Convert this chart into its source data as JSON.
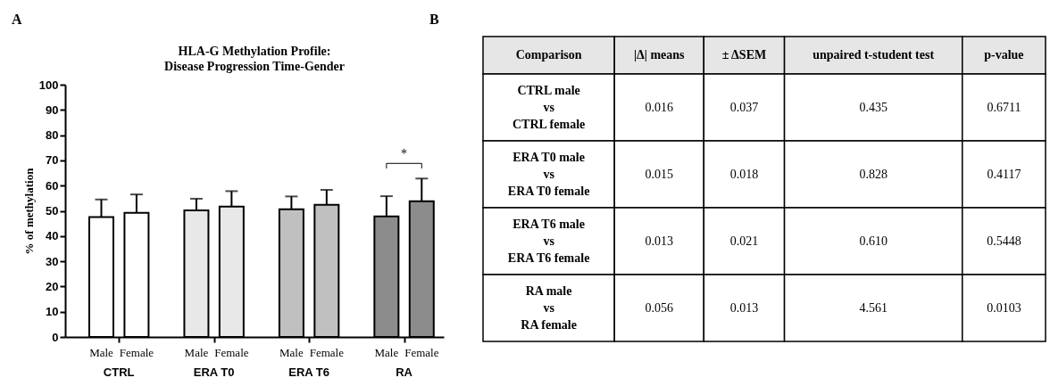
{
  "chart_data": [
    {
      "type": "bar",
      "title": "HLA-G Methylation Profile:\nDisease Progression Time-Gender",
      "ylabel": "% of methylation",
      "categories": [
        "Male",
        "Female",
        "Male",
        "Female",
        "Male",
        "Female",
        "Male",
        "Female"
      ],
      "values": [
        47.5,
        49.2,
        50.2,
        51.7,
        50.6,
        52.4,
        47.8,
        53.8
      ],
      "errors": [
        7,
        7.3,
        4.6,
        6.1,
        5.1,
        5.9,
        8,
        9
      ],
      "colors": [
        "#ffffff",
        "#ffffff",
        "#e8e8e8",
        "#e8e8e8",
        "#c0c0c0",
        "#c0c0c0",
        "#8c8c8c",
        "#8c8c8c"
      ],
      "ylim": [
        0,
        100
      ],
      "yticks": [
        0,
        10,
        20,
        30,
        40,
        50,
        60,
        70,
        80,
        90,
        100
      ],
      "grid": false,
      "legend": false,
      "annotations": [
        "A",
        "*",
        "CTRL",
        "ERA T0",
        "ERA T6",
        "RA"
      ]
    },
    {
      "type": "other",
      "annotations": [
        "B",
        "Comparison",
        "|Δ| means",
        "± ΔSEM",
        "unpaired t-student test",
        "p-value",
        "CTRL male\nvs\nCTRL female",
        "0.016",
        "0.037",
        "0.435",
        "0.6711",
        "ERA T0 male\nvs\nERA T0 female",
        "0.015",
        "0.018",
        "0.828",
        "0.4117",
        "ERA T6 male\nvs\nERA T6 female",
        "0.013",
        "0.021",
        "0.610",
        "0.5448",
        "RA male\nvs\nRA female",
        "0.056",
        "0.013",
        "4.561",
        "0.0103"
      ]
    }
  ]
}
